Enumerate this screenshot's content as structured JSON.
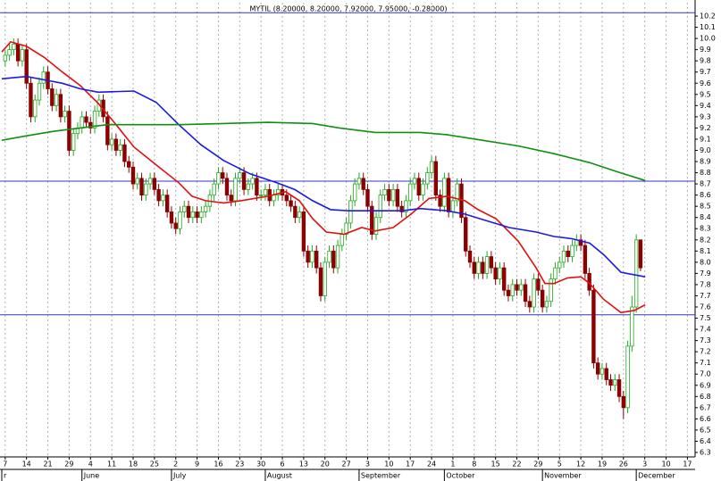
{
  "chart_data": {
    "type": "candlestick",
    "title": "MYTIL (8.20000, 8.20000, 7.92000, 7.95000, -0.28000)",
    "ylim": [
      6.26,
      10.32
    ],
    "xlim": [
      -0.8,
      161.8
    ],
    "yticks": [
      6.3,
      6.4,
      6.5,
      6.6,
      6.7,
      6.8,
      6.9,
      {
        "value": 7,
        "label": "7.0"
      },
      7.1,
      7.2,
      7.3,
      7.4,
      7.5,
      7.6,
      7.7,
      7.8,
      7.9,
      {
        "value": 8,
        "label": "8.0"
      },
      8.1,
      8.2,
      8.3,
      8.4,
      8.5,
      8.6,
      8.7,
      8.8,
      8.9,
      {
        "value": 9,
        "label": "9.0"
      },
      9.1,
      9.2,
      9.3,
      9.4,
      9.5,
      9.6,
      9.7,
      9.8,
      9.9,
      {
        "value": 10,
        "label": "10.0"
      },
      10.1,
      10.2
    ],
    "xticks": [
      {
        "value": 0,
        "label": "7"
      },
      {
        "value": 5,
        "label": "14"
      },
      {
        "value": 10,
        "label": "21"
      },
      {
        "value": 15,
        "label": "29"
      },
      {
        "value": 20,
        "label": "4"
      },
      {
        "value": 25,
        "label": "11"
      },
      {
        "value": 30,
        "label": "18"
      },
      {
        "value": 35,
        "label": "25"
      },
      {
        "value": 40,
        "label": "2"
      },
      {
        "value": 45,
        "label": "9"
      },
      {
        "value": 50,
        "label": "16"
      },
      {
        "value": 55,
        "label": "23"
      },
      {
        "value": 60,
        "label": "30"
      },
      {
        "value": 65,
        "label": "6"
      },
      {
        "value": 70,
        "label": "13"
      },
      {
        "value": 75,
        "label": "20"
      },
      {
        "value": 80,
        "label": "27"
      },
      {
        "value": 85,
        "label": "3"
      },
      {
        "value": 90,
        "label": "10"
      },
      {
        "value": 95,
        "label": "17"
      },
      {
        "value": 100,
        "label": "24"
      },
      {
        "value": 105,
        "label": "1"
      },
      {
        "value": 110,
        "label": "8"
      },
      {
        "value": 115,
        "label": "15"
      },
      {
        "value": 120,
        "label": "22"
      },
      {
        "value": 125,
        "label": "29"
      },
      {
        "value": 130,
        "label": "5"
      },
      {
        "value": 135,
        "label": "12"
      },
      {
        "value": 140,
        "label": "19"
      },
      {
        "value": 145,
        "label": "26"
      },
      {
        "value": 150,
        "label": "3"
      },
      {
        "value": 155,
        "label": "10"
      },
      {
        "value": 160,
        "label": "17"
      }
    ],
    "months": [
      {
        "value": -0.8,
        "label": "r"
      },
      {
        "value": 18,
        "label": "June"
      },
      {
        "value": 39,
        "label": "July"
      },
      {
        "value": 61,
        "label": "August"
      },
      {
        "value": 83,
        "label": "September"
      },
      {
        "value": 103,
        "label": "October"
      },
      {
        "value": 126,
        "label": "November"
      },
      {
        "value": 148,
        "label": "December"
      }
    ],
    "grid": true,
    "up_color": "#22aa22",
    "down_color": "#8b0000",
    "hlines": [
      10.23,
      8.725,
      7.53
    ],
    "hline_color": "#3333cc",
    "ohlc": [
      [
        9.8,
        9.9,
        9.75,
        9.85
      ],
      [
        9.85,
        9.95,
        9.8,
        9.9
      ],
      [
        9.9,
        10.0,
        9.85,
        9.95
      ],
      [
        9.95,
        10.0,
        9.75,
        9.8
      ],
      [
        9.8,
        9.95,
        9.75,
        9.9
      ],
      [
        9.9,
        9.95,
        9.55,
        9.6
      ],
      [
        9.6,
        9.65,
        9.25,
        9.3
      ],
      [
        9.3,
        9.5,
        9.25,
        9.45
      ],
      [
        9.45,
        9.65,
        9.4,
        9.6
      ],
      [
        9.6,
        9.75,
        9.55,
        9.7
      ],
      [
        9.7,
        9.75,
        9.5,
        9.55
      ],
      [
        9.55,
        9.6,
        9.35,
        9.4
      ],
      [
        9.4,
        9.55,
        9.35,
        9.5
      ],
      [
        9.5,
        9.55,
        9.25,
        9.3
      ],
      [
        9.3,
        9.4,
        9.25,
        9.35
      ],
      [
        9.35,
        9.4,
        8.95,
        9.0
      ],
      [
        9.0,
        9.2,
        8.95,
        9.15
      ],
      [
        9.15,
        9.25,
        9.1,
        9.2
      ],
      [
        9.2,
        9.35,
        9.15,
        9.3
      ],
      [
        9.3,
        9.35,
        9.2,
        9.25
      ],
      [
        9.25,
        9.3,
        9.15,
        9.2
      ],
      [
        9.2,
        9.4,
        9.15,
        9.35
      ],
      [
        9.35,
        9.5,
        9.3,
        9.45
      ],
      [
        9.45,
        9.5,
        9.25,
        9.3
      ],
      [
        9.3,
        9.35,
        9.0,
        9.05
      ],
      [
        9.05,
        9.15,
        9.0,
        9.1
      ],
      [
        9.1,
        9.15,
        8.95,
        9.0
      ],
      [
        9.0,
        9.1,
        8.95,
        9.05
      ],
      [
        9.05,
        9.1,
        8.85,
        8.9
      ],
      [
        8.9,
        8.95,
        8.8,
        8.85
      ],
      [
        8.85,
        8.9,
        8.65,
        8.7
      ],
      [
        8.7,
        8.8,
        8.65,
        8.75
      ],
      [
        8.75,
        8.8,
        8.55,
        8.6
      ],
      [
        8.6,
        8.75,
        8.55,
        8.7
      ],
      [
        8.7,
        8.8,
        8.65,
        8.75
      ],
      [
        8.75,
        8.8,
        8.6,
        8.65
      ],
      [
        8.65,
        8.7,
        8.5,
        8.55
      ],
      [
        8.55,
        8.65,
        8.5,
        8.6
      ],
      [
        8.6,
        8.65,
        8.4,
        8.45
      ],
      [
        8.45,
        8.5,
        8.3,
        8.35
      ],
      [
        8.35,
        8.4,
        8.25,
        8.3
      ],
      [
        8.3,
        8.5,
        8.25,
        8.45
      ],
      [
        8.45,
        8.55,
        8.4,
        8.5
      ],
      [
        8.5,
        8.55,
        8.35,
        8.4
      ],
      [
        8.4,
        8.5,
        8.35,
        8.45
      ],
      [
        8.45,
        8.5,
        8.35,
        8.4
      ],
      [
        8.4,
        8.5,
        8.35,
        8.45
      ],
      [
        8.45,
        8.55,
        8.4,
        8.5
      ],
      [
        8.5,
        8.65,
        8.45,
        8.6
      ],
      [
        8.6,
        8.75,
        8.55,
        8.7
      ],
      [
        8.7,
        8.85,
        8.65,
        8.8
      ],
      [
        8.8,
        8.85,
        8.7,
        8.75
      ],
      [
        8.75,
        8.8,
        8.55,
        8.6
      ],
      [
        8.6,
        8.65,
        8.5,
        8.55
      ],
      [
        8.55,
        8.8,
        8.5,
        8.75
      ],
      [
        8.75,
        8.85,
        8.7,
        8.8
      ],
      [
        8.8,
        8.85,
        8.6,
        8.65
      ],
      [
        8.65,
        8.75,
        8.6,
        8.7
      ],
      [
        8.7,
        8.8,
        8.65,
        8.75
      ],
      [
        8.75,
        8.8,
        8.55,
        8.6
      ],
      [
        8.6,
        8.65,
        8.55,
        8.6
      ],
      [
        8.6,
        8.7,
        8.55,
        8.65
      ],
      [
        8.65,
        8.7,
        8.5,
        8.55
      ],
      [
        8.55,
        8.65,
        8.5,
        8.6
      ],
      [
        8.6,
        8.7,
        8.55,
        8.65
      ],
      [
        8.65,
        8.7,
        8.55,
        8.6
      ],
      [
        8.6,
        8.65,
        8.5,
        8.55
      ],
      [
        8.55,
        8.6,
        8.45,
        8.5
      ],
      [
        8.5,
        8.55,
        8.35,
        8.4
      ],
      [
        8.4,
        8.5,
        8.35,
        8.45
      ],
      [
        8.45,
        8.5,
        8.05,
        8.1
      ],
      [
        8.1,
        8.15,
        7.95,
        8.0
      ],
      [
        8.0,
        8.15,
        7.95,
        8.1
      ],
      [
        8.1,
        8.15,
        7.9,
        7.95
      ],
      [
        7.95,
        8.0,
        7.65,
        7.7
      ],
      [
        7.7,
        8.05,
        7.65,
        8.0
      ],
      [
        8.0,
        8.15,
        7.95,
        8.1
      ],
      [
        8.1,
        8.15,
        7.9,
        7.95
      ],
      [
        7.95,
        8.2,
        7.9,
        8.15
      ],
      [
        8.15,
        8.3,
        8.1,
        8.25
      ],
      [
        8.25,
        8.4,
        8.2,
        8.35
      ],
      [
        8.35,
        8.6,
        8.3,
        8.55
      ],
      [
        8.55,
        8.75,
        8.5,
        8.7
      ],
      [
        8.7,
        8.8,
        8.65,
        8.75
      ],
      [
        8.75,
        8.8,
        8.6,
        8.65
      ],
      [
        8.65,
        8.7,
        8.45,
        8.5
      ],
      [
        8.5,
        8.55,
        8.2,
        8.25
      ],
      [
        8.25,
        8.45,
        8.2,
        8.4
      ],
      [
        8.4,
        8.65,
        8.35,
        8.6
      ],
      [
        8.6,
        8.7,
        8.55,
        8.65
      ],
      [
        8.65,
        8.7,
        8.5,
        8.55
      ],
      [
        8.55,
        8.7,
        8.5,
        8.65
      ],
      [
        8.65,
        8.7,
        8.45,
        8.5
      ],
      [
        8.5,
        8.55,
        8.4,
        8.45
      ],
      [
        8.45,
        8.6,
        8.4,
        8.55
      ],
      [
        8.55,
        8.75,
        8.5,
        8.7
      ],
      [
        8.7,
        8.8,
        8.65,
        8.75
      ],
      [
        8.75,
        8.8,
        8.55,
        8.6
      ],
      [
        8.6,
        8.75,
        8.55,
        8.7
      ],
      [
        8.7,
        8.85,
        8.65,
        8.8
      ],
      [
        8.8,
        8.95,
        8.75,
        8.9
      ],
      [
        8.9,
        8.95,
        8.55,
        8.6
      ],
      [
        8.6,
        8.65,
        8.45,
        8.5
      ],
      [
        8.5,
        8.8,
        8.45,
        8.75
      ],
      [
        8.75,
        8.8,
        8.4,
        8.45
      ],
      [
        8.45,
        8.6,
        8.4,
        8.55
      ],
      [
        8.55,
        8.75,
        8.5,
        8.7
      ],
      [
        8.7,
        8.75,
        8.35,
        8.4
      ],
      [
        8.4,
        8.45,
        8.05,
        8.1
      ],
      [
        8.1,
        8.15,
        7.95,
        8.0
      ],
      [
        8.0,
        8.05,
        7.85,
        7.9
      ],
      [
        7.9,
        8.05,
        7.85,
        8.0
      ],
      [
        8.0,
        8.05,
        7.85,
        7.9
      ],
      [
        7.9,
        8.1,
        7.85,
        8.05
      ],
      [
        8.05,
        8.1,
        7.9,
        7.95
      ],
      [
        7.95,
        8.0,
        7.8,
        7.85
      ],
      [
        7.85,
        8.0,
        7.8,
        7.95
      ],
      [
        7.95,
        8.0,
        7.7,
        7.75
      ],
      [
        7.75,
        7.8,
        7.65,
        7.7
      ],
      [
        7.7,
        7.85,
        7.65,
        7.8
      ],
      [
        7.8,
        7.85,
        7.7,
        7.75
      ],
      [
        7.75,
        7.85,
        7.7,
        7.8
      ],
      [
        7.8,
        7.85,
        7.6,
        7.65
      ],
      [
        7.65,
        7.7,
        7.55,
        7.6
      ],
      [
        7.6,
        7.9,
        7.55,
        7.85
      ],
      [
        7.85,
        7.9,
        7.7,
        7.75
      ],
      [
        7.75,
        7.8,
        7.55,
        7.6
      ],
      [
        7.6,
        7.7,
        7.55,
        7.65
      ],
      [
        7.65,
        7.9,
        7.6,
        7.85
      ],
      [
        7.85,
        8.0,
        7.8,
        7.95
      ],
      [
        7.95,
        8.05,
        7.9,
        8.0
      ],
      [
        8.0,
        8.15,
        7.95,
        8.1
      ],
      [
        8.1,
        8.15,
        8.0,
        8.05
      ],
      [
        8.05,
        8.2,
        8.0,
        8.15
      ],
      [
        8.15,
        8.25,
        8.1,
        8.2
      ],
      [
        8.2,
        8.25,
        8.1,
        8.15
      ],
      [
        8.15,
        8.2,
        7.85,
        7.9
      ],
      [
        7.9,
        7.95,
        7.7,
        7.75
      ],
      [
        7.75,
        7.8,
        7.05,
        7.1
      ],
      [
        7.1,
        7.15,
        6.95,
        7.0
      ],
      [
        7.0,
        7.1,
        6.95,
        7.05
      ],
      [
        7.05,
        7.1,
        6.9,
        6.95
      ],
      [
        6.95,
        7.0,
        6.85,
        6.9
      ],
      [
        6.9,
        7.0,
        6.85,
        6.95
      ],
      [
        6.95,
        7.0,
        6.75,
        6.8
      ],
      [
        6.8,
        6.85,
        6.6,
        6.7
      ],
      [
        6.7,
        7.3,
        6.65,
        7.25
      ],
      [
        7.25,
        7.7,
        7.2,
        7.6
      ],
      [
        7.6,
        8.25,
        7.55,
        8.2
      ],
      [
        8.2,
        8.2,
        7.92,
        7.95
      ]
    ],
    "lines": [
      {
        "color": "#e01010",
        "x": [
          -0.8,
          1.3,
          5,
          9.2,
          13.4,
          17.6,
          21.8,
          26,
          30.2,
          35.4,
          40.7,
          43.8,
          47,
          51.2,
          55.3,
          61.6,
          65.8,
          69,
          72.1,
          75.3,
          79.5,
          83.6,
          86.8,
          91,
          95.2,
          99.4,
          103.6,
          107.8,
          110.9,
          115.1,
          120.3,
          124.5,
          126.6,
          128.7,
          131.9,
          135,
          137.1,
          140.3,
          144.4,
          147.6,
          150.1
        ],
        "values": [
          9.88,
          9.97,
          9.93,
          9.83,
          9.7,
          9.58,
          9.42,
          9.23,
          9.03,
          8.87,
          8.71,
          8.59,
          8.55,
          8.53,
          8.55,
          8.59,
          8.63,
          8.55,
          8.39,
          8.27,
          8.25,
          8.31,
          8.28,
          8.31,
          8.43,
          8.57,
          8.59,
          8.55,
          8.47,
          8.39,
          8.19,
          7.95,
          7.81,
          7.81,
          7.86,
          7.87,
          7.81,
          7.67,
          7.55,
          7.57,
          7.62
        ]
      },
      {
        "color": "#1a1ae0",
        "x": [
          -0.8,
          5,
          9.2,
          13.4,
          17.6,
          21.8,
          30.2,
          35.4,
          40.7,
          45.9,
          51.2,
          57.4,
          63.7,
          67.9,
          72.1,
          76.3,
          80.5,
          86.8,
          93.1,
          97.3,
          103.6,
          107.8,
          113,
          118.2,
          124.5,
          128.7,
          132.9,
          137.1,
          140.3,
          144.4,
          150.1
        ],
        "values": [
          9.64,
          9.66,
          9.63,
          9.6,
          9.55,
          9.52,
          9.53,
          9.43,
          9.23,
          9.05,
          8.91,
          8.79,
          8.71,
          8.65,
          8.55,
          8.47,
          8.46,
          8.46,
          8.46,
          8.48,
          8.46,
          8.43,
          8.37,
          8.31,
          8.27,
          8.23,
          8.21,
          8.17,
          8.07,
          7.91,
          7.87
        ]
      },
      {
        "color": "#109010",
        "x": [
          -0.8,
          5,
          11.3,
          17.6,
          23.9,
          32.3,
          40.7,
          51.2,
          61.6,
          72.1,
          78.4,
          86.8,
          97.3,
          103.6,
          111.9,
          120.3,
          128.7,
          137.1,
          143.4,
          150.1
        ],
        "values": [
          9.09,
          9.13,
          9.17,
          9.2,
          9.23,
          9.23,
          9.23,
          9.24,
          9.25,
          9.24,
          9.2,
          9.16,
          9.16,
          9.14,
          9.09,
          9.04,
          8.97,
          8.89,
          8.81,
          8.73
        ]
      }
    ]
  }
}
